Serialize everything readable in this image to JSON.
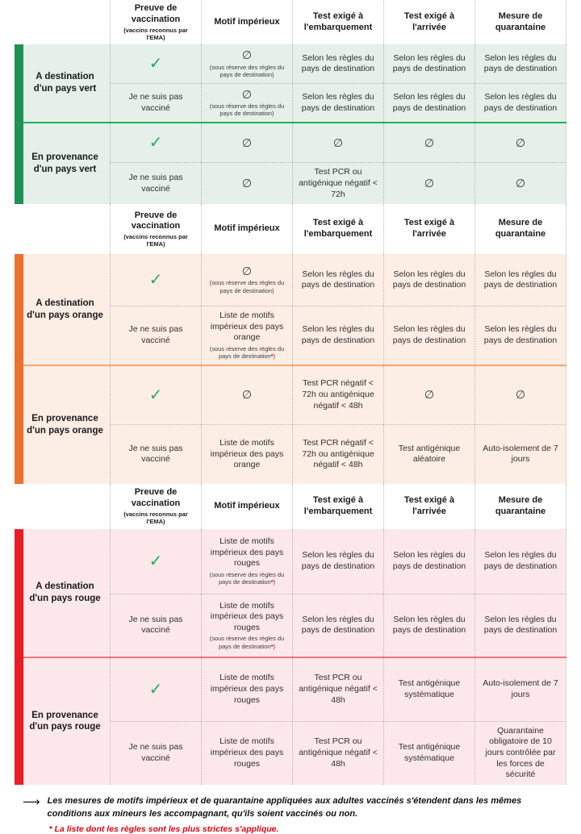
{
  "icons": {
    "check": "✓",
    "none": "∅",
    "arrow": "⟶"
  },
  "colors": {
    "green_bar": "#1f9254",
    "green_bg": "#e4f0e9",
    "green_line": "#27ae60",
    "orange_bar": "#ed712e",
    "orange_bg": "#fdeee5",
    "orange_line": "#f5a673",
    "red_bar": "#ed1c24",
    "red_bg": "#fce8ea",
    "red_line": "#f4737b",
    "check_green": "#27ae60",
    "note_red": "#e1000f"
  },
  "header": {
    "vaccination_title": "Preuve de vaccination",
    "vaccination_sub": "(vaccins reconnus par l'EMA)",
    "motif": "Motif impérieux",
    "test_departure": "Test exigé à l'embarquement",
    "test_arrival": "Test exigé à l'arrivée",
    "quarantine": "Mesure de quarantaine"
  },
  "common": {
    "not_vaccinated": "Je ne suis pas vacciné",
    "selon": "Selon les règles du pays de destination",
    "reserve": "(sous réserve des règles du pays de destination)",
    "reserve_pre": "(sous réserve des règles du pays de destination",
    "star": "*",
    "close": ")"
  },
  "green": {
    "dest_label": "A destination d'un pays vert",
    "prov_label": "En provenance d'un pays vert",
    "prov_unvacc_test": "Test PCR ou antigénique négatif < 72h"
  },
  "orange": {
    "dest_label": "A destination d'un pays orange",
    "prov_label": "En provenance d'un pays orange",
    "motif_list": "Liste de motifs impérieux des pays orange",
    "test": "Test PCR négatif < 72h ou antigénique négatif < 48h",
    "arrival_random": "Test antigénique aléatoire",
    "quarantine_self": "Auto-isolement de 7 jours"
  },
  "red": {
    "dest_label": "A destination d'un pays rouge",
    "prov_label": "En provenance d'un pays rouge",
    "motif_list": "Liste de motifs impérieux des pays rouges",
    "test": "Test PCR ou antigénique négatif < 48h",
    "arrival_systematic": "Test antigénique systématique",
    "quarantine_self": "Auto-isolement de 7 jours",
    "quarantine_mandatory": "Quarantaine obligatoire de 10 jours contrôlée par les forces de sécurité"
  },
  "footer": {
    "note_main": "Les mesures de motifs impérieux et de quarantaine appliquées aux adultes vaccinés s'étendent dans les mêmes conditions aux mineurs les accompagnant, qu'ils soient vaccinés ou non.",
    "note_star": "*",
    "note_red_text": " La liste dont les règles sont les plus strictes s'applique."
  }
}
